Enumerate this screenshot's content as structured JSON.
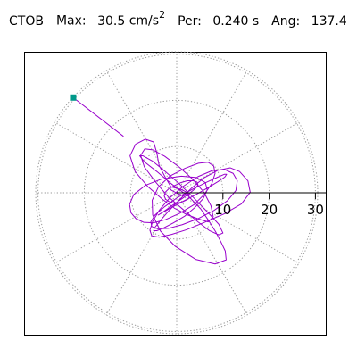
{
  "header": {
    "station": "CTOB",
    "max_label": "Max:",
    "max_value": "30.5",
    "max_units_base": "cm/s",
    "max_units_exp": "2",
    "per_label": "Per:",
    "per_value": "0.240 s",
    "ang_label": "Ang:",
    "ang_value": "137.4"
  },
  "chart_data": {
    "type": "line",
    "title": "",
    "xlabel": "",
    "ylabel": "",
    "polar": true,
    "radial_ticks": [
      10,
      20,
      30
    ],
    "rmax": 30.5,
    "grid": true,
    "angular_gridlines_deg": [
      0,
      30,
      60,
      90,
      120,
      150,
      180,
      210,
      240,
      270,
      300,
      330
    ],
    "peak": {
      "magnitude": 30.5,
      "azimuth_deg_from_east_ccw": 137.4
    },
    "series": [
      {
        "color": "#9900cc",
        "x": [
          -1.2,
          -2.5,
          -3.8,
          -4.3,
          -5.0,
          -6.8,
          -8.9,
          -10.1,
          -9.0,
          -6.2,
          -3.1,
          -0.4,
          2.4,
          4.8,
          6.8,
          7.9,
          7.4,
          5.9,
          3.4,
          0.5,
          -2.6,
          -5.2,
          -6.9,
          -7.8,
          -7.0,
          -4.7,
          -1.9,
          1.6,
          4.6,
          7.1,
          9.1,
          10.0,
          9.1,
          6.7,
          3.6,
          0.4,
          -2.7,
          -5.3,
          -7.3,
          -8.0,
          -7.0,
          -4.3,
          -1.1,
          2.6,
          5.2,
          6.9,
          8.4,
          9.6,
          10.5,
          10.7,
          8.3,
          4.1,
          -0.3,
          -3.5,
          -5.2,
          -5.3,
          -4.0,
          -1.5,
          1.8,
          4.7,
          6.8,
          8.0,
          8.3,
          7.6,
          6.0,
          3.7,
          0.7,
          -2.4,
          -5.0,
          -7.1,
          -8.8,
          -9.9,
          -10.2,
          -9.3,
          -6.8,
          -3.2,
          1.0,
          4.3,
          6.2,
          6.6,
          5.7,
          3.9,
          1.8,
          -0.7,
          -2.8,
          -4.3,
          -5.0,
          -4.8,
          -3.6,
          -1.8,
          0.6,
          3.2,
          6.0,
          9.0,
          11.6,
          13.6,
          15.4,
          15.9,
          14.0,
          10.4,
          6.0,
          2.1,
          -1.1,
          -3.8,
          -5.4,
          -5.8,
          -5.2,
          -3.8,
          -1.5,
          1.4,
          4.6,
          7.7,
          10.4,
          12.2,
          13.1,
          12.8,
          11.0,
          8.1,
          4.6,
          1.2,
          -1.8,
          -4.1,
          -5.4,
          -5.6,
          -4.7,
          -2.6,
          0.2,
          3.5,
          6.5,
          8.9,
          10.3,
          10.8,
          10.4,
          8.9,
          6.6,
          3.8,
          0.9,
          -1.7,
          -3.3,
          -4.0,
          -3.8,
          -2.9,
          -1.6,
          -0.2,
          1.4,
          2.8,
          4.0,
          4.6,
          4.4,
          3.6,
          2.3,
          0.9,
          -0.4,
          -1.7,
          -2.5,
          -2.7,
          -2.4,
          -1.7,
          -0.8,
          0.3,
          1.4,
          2.2,
          2.7,
          2.6,
          2.0,
          1.0,
          -0.1,
          -0.9,
          -1.4,
          -1.5,
          -1.2,
          -0.5,
          0.3,
          1.0,
          1.4,
          1.6,
          1.3,
          0.7
        ],
        "y": [
          1.2,
          3.4,
          5.9,
          8.6,
          11.0,
          11.6,
          10.5,
          8.0,
          4.6,
          1.3,
          -1.4,
          -3.4,
          -4.8,
          -5.7,
          -6.3,
          -5.2,
          -2.8,
          0.1,
          3.0,
          5.6,
          7.9,
          9.3,
          9.5,
          8.1,
          5.6,
          2.5,
          -0.8,
          -3.8,
          -6.3,
          -8.2,
          -9.1,
          -8.7,
          -6.8,
          -4.2,
          -1.0,
          2.1,
          4.8,
          6.9,
          8.0,
          8.0,
          6.7,
          4.6,
          1.9,
          -0.8,
          -3.5,
          -6.0,
          -8.4,
          -10.7,
          -12.6,
          -14.5,
          -15.4,
          -14.4,
          -11.6,
          -8.3,
          -4.8,
          -1.6,
          1.2,
          3.6,
          5.3,
          6.4,
          6.6,
          5.8,
          4.2,
          2.0,
          -0.3,
          -2.6,
          -4.4,
          -5.8,
          -6.5,
          -6.4,
          -5.6,
          -4.3,
          -2.5,
          -0.4,
          1.6,
          3.0,
          3.6,
          3.3,
          2.2,
          0.6,
          -1.3,
          -3.2,
          -5.0,
          -6.5,
          -7.6,
          -8.2,
          -8.2,
          -7.6,
          -6.1,
          -4.0,
          -1.5,
          1.0,
          3.3,
          4.9,
          5.4,
          4.6,
          2.6,
          0.1,
          -2.4,
          -4.5,
          -6.4,
          -8.0,
          -9.0,
          -9.6,
          -9.3,
          -8.1,
          -6.2,
          -3.8,
          -1.1,
          1.4,
          3.5,
          4.8,
          5.0,
          4.2,
          2.6,
          0.5,
          -1.7,
          -3.8,
          -5.6,
          -6.9,
          -7.7,
          -7.8,
          -7.3,
          -6.3,
          -4.8,
          -3.0,
          -1.0,
          0.8,
          2.3,
          3.4,
          4.0,
          4.0,
          3.4,
          2.4,
          1.0,
          -0.6,
          -2.1,
          -3.5,
          -4.4,
          -4.8,
          -4.7,
          -4.1,
          -3.2,
          -2.2,
          -1.1,
          -0.1,
          0.9,
          1.7,
          2.3,
          2.6,
          2.6,
          2.2,
          1.6,
          0.9,
          0.1,
          -0.7,
          -1.4,
          -1.9,
          -2.2,
          -2.2,
          -1.9,
          -1.5,
          -1.0,
          -0.4,
          0.2,
          0.7,
          1.0,
          1.2,
          1.2,
          1.0,
          0.6,
          0.2,
          -0.2,
          -0.5,
          -0.7,
          -0.7,
          -0.6,
          -0.3
        ]
      }
    ],
    "marker": {
      "color": "#00998a",
      "x": -22.4,
      "y": 20.6
    }
  }
}
